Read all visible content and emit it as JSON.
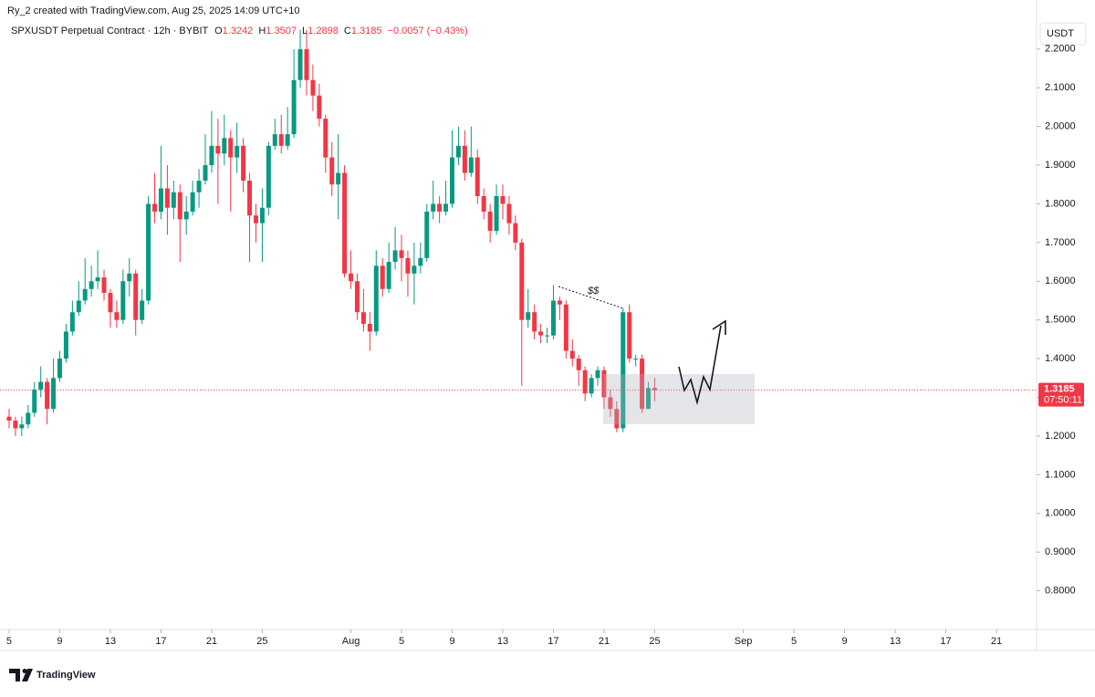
{
  "chart_data": {
    "type": "candlestick",
    "credit": "Ry_2 created with TradingView.com, Aug 25, 2025 14:09 UTC+10",
    "symbol": "SPXUSDT Perpetual Contract · 12h · BYBIT",
    "ohlc_labels": [
      "O",
      "H",
      "L",
      "C"
    ],
    "change": "−0.0057 (−0.43%)",
    "currency": "USDT",
    "countdown": "07:50:11",
    "annotation": "$$",
    "brand": "TradingView",
    "up_color": "#089981",
    "down_color": "#f23645",
    "grid": false,
    "x": [
      0,
      0.5,
      1,
      1.5,
      2,
      2.5,
      3,
      3.5,
      4,
      4.5,
      5,
      5.5,
      6,
      6.5,
      7,
      7.5,
      8,
      8.5,
      9,
      9.5,
      10,
      10.5,
      11,
      11.5,
      12,
      12.5,
      13,
      13.5,
      14,
      14.5,
      15,
      15.5,
      16,
      16.5,
      17,
      17.5,
      18,
      18.5,
      19,
      19.5,
      20,
      20.5,
      21,
      21.5,
      22,
      22.5,
      23,
      23.5,
      24,
      24.5,
      25,
      25.5,
      26,
      26.5,
      27,
      27.5,
      28,
      28.5,
      29,
      29.5,
      30,
      30.5,
      31,
      31.5,
      32,
      32.5,
      33,
      33.5,
      34,
      34.5,
      35,
      35.5,
      36,
      36.5,
      37,
      37.5,
      38,
      38.5,
      39,
      39.5,
      40,
      40.5,
      41,
      41.5,
      42,
      42.5,
      43,
      43.5,
      44,
      44.5,
      45,
      45.5,
      46,
      46.5,
      47,
      47.5,
      48,
      48.5,
      49,
      49.5,
      50,
      50.5,
      51
    ],
    "open": [
      1.25,
      1.24,
      1.22,
      1.23,
      1.26,
      1.32,
      1.34,
      1.27,
      1.35,
      1.4,
      1.47,
      1.52,
      1.55,
      1.58,
      1.6,
      1.61,
      1.57,
      1.52,
      1.5,
      1.6,
      1.62,
      1.5,
      1.55,
      1.8,
      1.78,
      1.84,
      1.79,
      1.83,
      1.76,
      1.78,
      1.83,
      1.86,
      1.9,
      1.95,
      1.93,
      1.97,
      1.92,
      1.95,
      1.86,
      1.77,
      1.75,
      1.79,
      1.95,
      1.98,
      1.95,
      1.98,
      2.12,
      2.2,
      2.12,
      2.08,
      2.02,
      1.92,
      1.85,
      1.88,
      1.62,
      1.6,
      1.52,
      1.49,
      1.47,
      1.64,
      1.58,
      1.65,
      1.68,
      1.66,
      1.62,
      1.64,
      1.66,
      1.78,
      1.8,
      1.78,
      1.8,
      1.92,
      1.95,
      1.88,
      1.92,
      1.82,
      1.78,
      1.73,
      1.82,
      1.8,
      1.75,
      1.7,
      1.5,
      1.52,
      1.47,
      1.46,
      1.46,
      1.55,
      1.54,
      1.42,
      1.4,
      1.37,
      1.31,
      1.35,
      1.37,
      1.3,
      1.27,
      1.22,
      1.52,
      1.4,
      1.4,
      1.27,
      1.3242
    ],
    "high": [
      1.27,
      1.25,
      1.25,
      1.28,
      1.34,
      1.38,
      1.35,
      1.4,
      1.42,
      1.49,
      1.55,
      1.6,
      1.66,
      1.64,
      1.68,
      1.63,
      1.58,
      1.55,
      1.63,
      1.66,
      1.63,
      1.58,
      1.82,
      1.88,
      1.95,
      1.9,
      1.86,
      1.85,
      1.82,
      1.86,
      1.89,
      1.98,
      2.04,
      2.02,
      2.03,
      1.99,
      2.01,
      1.97,
      1.88,
      1.8,
      1.84,
      1.96,
      2.02,
      2.03,
      2.05,
      2.2,
      2.25,
      2.25,
      2.16,
      2.11,
      2.03,
      1.96,
      1.98,
      1.9,
      1.68,
      1.62,
      1.58,
      1.52,
      1.68,
      1.66,
      1.7,
      1.74,
      1.72,
      1.68,
      1.7,
      1.7,
      1.8,
      1.86,
      1.82,
      1.86,
      1.99,
      2.0,
      1.99,
      2.0,
      1.94,
      1.84,
      1.8,
      1.85,
      1.85,
      1.82,
      1.77,
      1.71,
      1.58,
      1.54,
      1.49,
      1.48,
      1.59,
      1.56,
      1.55,
      1.45,
      1.41,
      1.38,
      1.36,
      1.38,
      1.38,
      1.32,
      1.29,
      1.53,
      1.54,
      1.41,
      1.41,
      1.34,
      1.3507
    ],
    "low": [
      1.22,
      1.2,
      1.2,
      1.22,
      1.25,
      1.3,
      1.23,
      1.26,
      1.34,
      1.39,
      1.46,
      1.51,
      1.54,
      1.56,
      1.58,
      1.55,
      1.48,
      1.48,
      1.49,
      1.56,
      1.46,
      1.49,
      1.54,
      1.75,
      1.76,
      1.72,
      1.76,
      1.65,
      1.72,
      1.77,
      1.79,
      1.85,
      1.88,
      1.8,
      1.9,
      1.78,
      1.88,
      1.83,
      1.65,
      1.7,
      1.65,
      1.77,
      1.94,
      1.93,
      1.94,
      1.97,
      2.1,
      2.08,
      2.04,
      2.0,
      1.88,
      1.82,
      1.76,
      1.61,
      1.58,
      1.5,
      1.47,
      1.42,
      1.46,
      1.56,
      1.57,
      1.63,
      1.6,
      1.56,
      1.54,
      1.62,
      1.65,
      1.76,
      1.75,
      1.77,
      1.79,
      1.9,
      1.86,
      1.87,
      1.8,
      1.76,
      1.7,
      1.72,
      1.76,
      1.72,
      1.68,
      1.33,
      1.48,
      1.45,
      1.44,
      1.44,
      1.45,
      1.5,
      1.4,
      1.38,
      1.33,
      1.29,
      1.3,
      1.33,
      1.27,
      1.25,
      1.21,
      1.21,
      1.39,
      1.38,
      1.26,
      1.27,
      1.2898
    ],
    "close": [
      1.24,
      1.22,
      1.23,
      1.26,
      1.32,
      1.34,
      1.27,
      1.35,
      1.4,
      1.47,
      1.52,
      1.55,
      1.58,
      1.6,
      1.61,
      1.57,
      1.52,
      1.5,
      1.6,
      1.62,
      1.5,
      1.55,
      1.8,
      1.78,
      1.84,
      1.79,
      1.83,
      1.76,
      1.78,
      1.83,
      1.86,
      1.9,
      1.95,
      1.93,
      1.97,
      1.92,
      1.95,
      1.86,
      1.77,
      1.75,
      1.79,
      1.95,
      1.98,
      1.95,
      1.98,
      2.12,
      2.2,
      2.12,
      2.08,
      2.02,
      1.92,
      1.85,
      1.88,
      1.62,
      1.6,
      1.52,
      1.49,
      1.47,
      1.64,
      1.58,
      1.65,
      1.68,
      1.66,
      1.62,
      1.64,
      1.66,
      1.78,
      1.8,
      1.78,
      1.8,
      1.92,
      1.95,
      1.88,
      1.92,
      1.82,
      1.78,
      1.73,
      1.82,
      1.8,
      1.75,
      1.7,
      1.5,
      1.52,
      1.47,
      1.46,
      1.46,
      1.55,
      1.54,
      1.42,
      1.4,
      1.37,
      1.31,
      1.35,
      1.37,
      1.3,
      1.27,
      1.22,
      1.52,
      1.4,
      1.4,
      1.27,
      1.3242,
      1.3185
    ],
    "xlim": [
      -0.72,
      81.1
    ],
    "xticks": [
      {
        "value": 0,
        "label": "5"
      },
      {
        "value": 4,
        "label": "9"
      },
      {
        "value": 8,
        "label": "13"
      },
      {
        "value": 12,
        "label": "17"
      },
      {
        "value": 16,
        "label": "21"
      },
      {
        "value": 20,
        "label": "25"
      },
      {
        "value": 27,
        "label": "Aug"
      },
      {
        "value": 31,
        "label": "5"
      },
      {
        "value": 35,
        "label": "9"
      },
      {
        "value": 39,
        "label": "13"
      },
      {
        "value": 43,
        "label": "17"
      },
      {
        "value": 47,
        "label": "21"
      },
      {
        "value": 51,
        "label": "25"
      },
      {
        "value": 58,
        "label": "Sep"
      },
      {
        "value": 62,
        "label": "5"
      },
      {
        "value": 66,
        "label": "9"
      },
      {
        "value": 70,
        "label": "13"
      },
      {
        "value": 74,
        "label": "17"
      },
      {
        "value": 78,
        "label": "21"
      }
    ],
    "ylim": [
      0.7,
      2.275
    ],
    "yticks": [
      {
        "value": 0.8,
        "label": "0.8000"
      },
      {
        "value": 0.9,
        "label": "0.9000"
      },
      {
        "value": 1.0,
        "label": "1.0000"
      },
      {
        "value": 1.1,
        "label": "1.1000"
      },
      {
        "value": 1.2,
        "label": "1.2000"
      },
      {
        "value": 1.3,
        "label": "1.3000"
      },
      {
        "value": 1.4,
        "label": "1.4000"
      },
      {
        "value": 1.5,
        "label": "1.5000"
      },
      {
        "value": 1.6,
        "label": "1.6000"
      },
      {
        "value": 1.7,
        "label": "1.7000"
      },
      {
        "value": 1.8,
        "label": "1.8000"
      },
      {
        "value": 1.9,
        "label": "1.9000"
      },
      {
        "value": 2.0,
        "label": "2.0000"
      },
      {
        "value": 2.1,
        "label": "2.1000"
      },
      {
        "value": 2.2,
        "label": "2.2000"
      }
    ]
  }
}
